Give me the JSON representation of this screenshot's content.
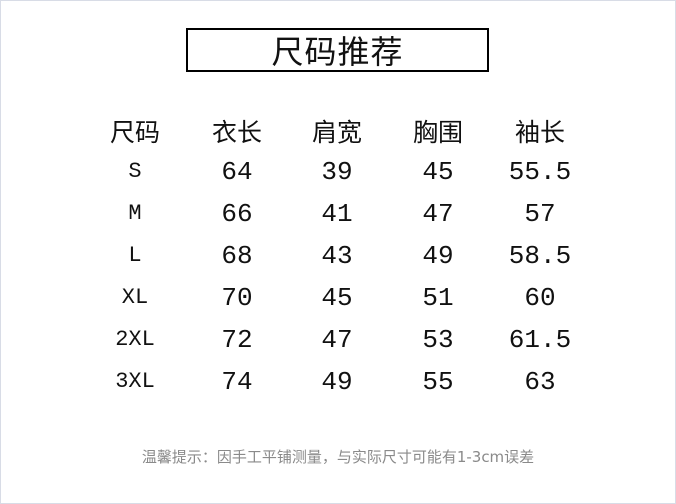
{
  "title": "尺码推荐",
  "table": {
    "headers": [
      "尺码",
      "衣长",
      "肩宽",
      "胸围",
      "袖长"
    ],
    "rows": [
      [
        "S",
        "64",
        "39",
        "45",
        "55.5"
      ],
      [
        "M",
        "66",
        "41",
        "47",
        "57"
      ],
      [
        "L",
        "68",
        "43",
        "49",
        "58.5"
      ],
      [
        "XL",
        "70",
        "45",
        "51",
        "60"
      ],
      [
        "2XL",
        "72",
        "47",
        "53",
        "61.5"
      ],
      [
        "3XL",
        "74",
        "49",
        "55",
        "63"
      ]
    ]
  },
  "note": "温馨提示：因手工平铺测量，与实际尺寸可能有1-3cm误差"
}
